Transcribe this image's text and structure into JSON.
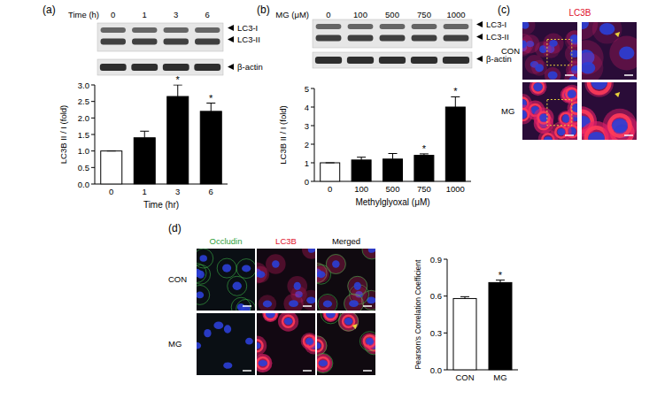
{
  "chart_data": [
    {
      "type": "bar",
      "categories": [
        "0",
        "1",
        "3",
        "6"
      ],
      "values": [
        1,
        1.4,
        2.65,
        2.2
      ],
      "errors": [
        0,
        0.2,
        0.35,
        0.25
      ],
      "annotations": [
        null,
        null,
        "*",
        "*"
      ],
      "colors": [
        "#ffffff",
        "#000000",
        "#000000",
        "#000000"
      ],
      "x_label": "Time (hr)",
      "y_label": "LC3B II / I (fold)",
      "ylim": [
        0,
        3
      ],
      "yticks": [
        {
          "value": 0,
          "label": "0.0"
        },
        0.5,
        {
          "value": 1,
          "label": "1.0"
        },
        1.5,
        {
          "value": 2,
          "label": "2.0"
        },
        2.5,
        {
          "value": 3,
          "label": "3.0"
        }
      ]
    },
    {
      "type": "bar",
      "categories": [
        "0",
        "100",
        "500",
        "750",
        "1000"
      ],
      "values": [
        1,
        1.15,
        1.2,
        1.4,
        4.0
      ],
      "errors": [
        0,
        0.15,
        0.3,
        0.08,
        0.55
      ],
      "annotations": [
        null,
        null,
        null,
        "*",
        "*"
      ],
      "colors": [
        "#ffffff",
        "#000000",
        "#000000",
        "#000000",
        "#000000"
      ],
      "x_label": "Methylglyoxal (μM)",
      "y_label": "LC3B II / I (fold)",
      "ylim": [
        0,
        5
      ],
      "yticks": [
        0,
        1,
        2,
        3,
        4,
        5
      ]
    },
    {
      "type": "bar",
      "categories": [
        "CON",
        "MG"
      ],
      "values": [
        0.58,
        0.71
      ],
      "errors": [
        0.015,
        0.02
      ],
      "annotations": [
        null,
        "*"
      ],
      "colors": [
        "#ffffff",
        "#000000"
      ],
      "y_label": "Pearson's Correlation Coefficient",
      "ylim": [
        0,
        0.9
      ],
      "yticks": [
        {
          "value": 0,
          "label": "0.0"
        },
        0.3,
        0.6,
        0.9
      ]
    }
  ],
  "figure": {
    "panels": {
      "a": {
        "label": "(a)",
        "blot": {
          "header": "Time (h)",
          "lanes": [
            "0",
            "1",
            "3",
            "6"
          ],
          "bands": [
            "LC3-I",
            "LC3-II",
            "β-actin"
          ]
        }
      },
      "b": {
        "label": "(b)",
        "blot": {
          "header": "MG (μM)",
          "lanes": [
            "0",
            "100",
            "500",
            "750",
            "1000"
          ],
          "bands": [
            "LC3-I",
            "LC3-II",
            "β-actin"
          ]
        }
      },
      "c": {
        "label": "(c)",
        "stain": "LC3B",
        "rows": [
          "CON",
          "MG"
        ]
      },
      "d": {
        "label": "(d)",
        "columns": [
          "Occludin",
          "LC3B",
          "Merged"
        ],
        "rows": [
          "CON",
          "MG"
        ]
      }
    }
  }
}
